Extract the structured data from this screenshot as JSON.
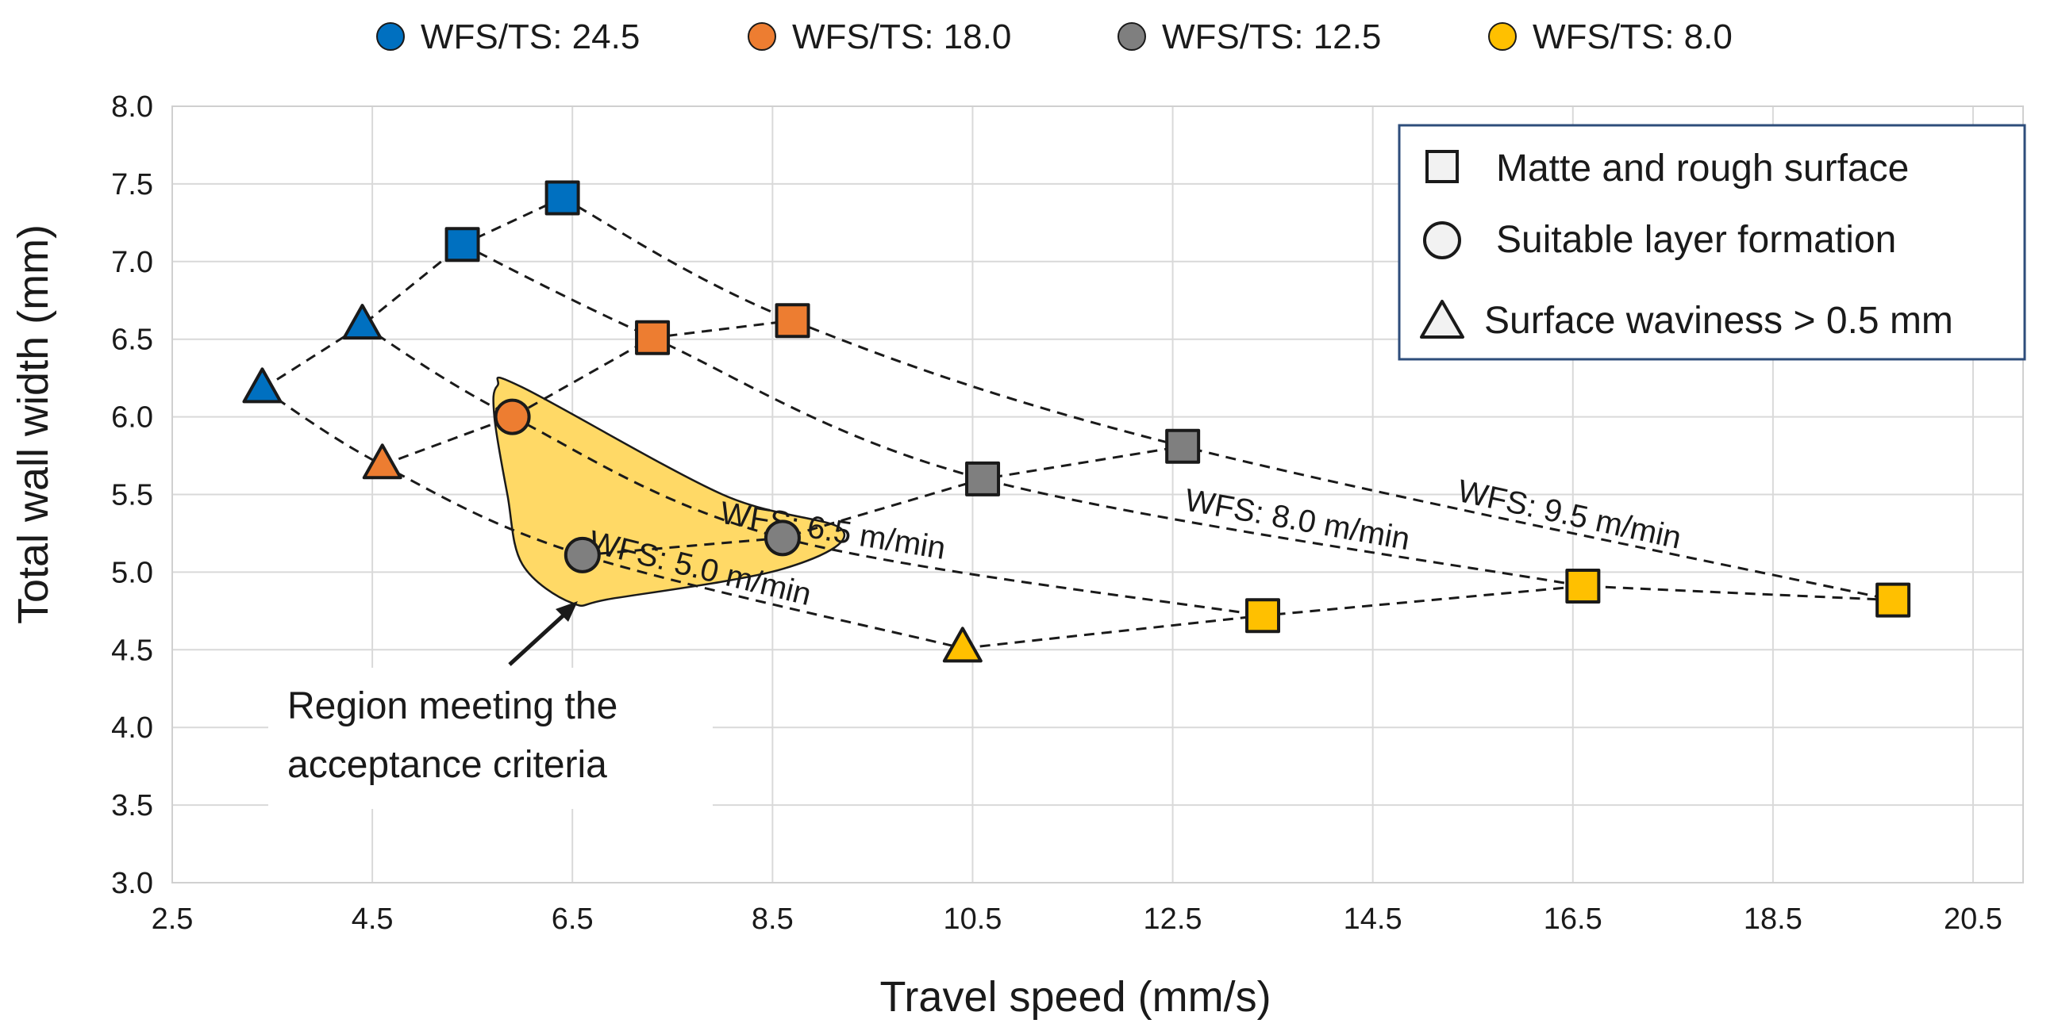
{
  "chart_data": {
    "type": "scatter",
    "xlabel": "Travel speed (mm/s)",
    "ylabel": "Total wall width (mm)",
    "xlim": [
      2.5,
      21.0
    ],
    "ylim": [
      3.0,
      8.0
    ],
    "xticks": [
      2.5,
      4.5,
      6.5,
      8.5,
      10.5,
      12.5,
      14.5,
      16.5,
      18.5,
      20.5
    ],
    "xtick_labels": [
      "2.5",
      "4.5",
      "6.5",
      "8.5",
      "10.5",
      "12.5",
      "14.5",
      "16.5",
      "18.5",
      "20.5"
    ],
    "yticks": [
      3.0,
      3.5,
      4.0,
      4.5,
      5.0,
      5.5,
      6.0,
      6.5,
      7.0,
      7.5,
      8.0
    ],
    "ytick_labels": [
      "3.0",
      "3.5",
      "4.0",
      "4.5",
      "5.0",
      "5.5",
      "6.0",
      "6.5",
      "7.0",
      "7.5",
      "8.0"
    ],
    "grid": true,
    "series": [
      {
        "name": "WFS/TS: 24.5",
        "color": "#0070C0",
        "points": [
          {
            "x": 3.4,
            "y": 6.18,
            "shape": "triangle"
          },
          {
            "x": 4.4,
            "y": 6.59,
            "shape": "triangle"
          },
          {
            "x": 5.4,
            "y": 7.11,
            "shape": "square"
          },
          {
            "x": 6.4,
            "y": 7.41,
            "shape": "square"
          }
        ]
      },
      {
        "name": "WFS/TS: 18.0",
        "color": "#ED7D31",
        "points": [
          {
            "x": 4.6,
            "y": 5.69,
            "shape": "triangle"
          },
          {
            "x": 5.9,
            "y": 6.0,
            "shape": "circle"
          },
          {
            "x": 7.3,
            "y": 6.51,
            "shape": "square"
          },
          {
            "x": 8.7,
            "y": 6.62,
            "shape": "square"
          }
        ]
      },
      {
        "name": "WFS/TS: 12.5",
        "color": "#7F7F7F",
        "points": [
          {
            "x": 6.6,
            "y": 5.11,
            "shape": "circle"
          },
          {
            "x": 8.6,
            "y": 5.22,
            "shape": "circle"
          },
          {
            "x": 10.6,
            "y": 5.6,
            "shape": "square"
          },
          {
            "x": 12.6,
            "y": 5.81,
            "shape": "square"
          }
        ]
      },
      {
        "name": "WFS/TS: 8.0",
        "color": "#FFC000",
        "points": [
          {
            "x": 10.4,
            "y": 4.51,
            "shape": "triangle"
          },
          {
            "x": 13.4,
            "y": 4.72,
            "shape": "square"
          },
          {
            "x": 16.6,
            "y": 4.91,
            "shape": "square"
          },
          {
            "x": 19.7,
            "y": 4.82,
            "shape": "square"
          }
        ]
      }
    ],
    "wfs_curves": [
      {
        "label": "WFS: 5.0 m/min",
        "points": [
          [
            3.4,
            6.18
          ],
          [
            4.6,
            5.69
          ],
          [
            6.6,
            5.11
          ],
          [
            10.4,
            4.51
          ]
        ]
      },
      {
        "label": "WFS: 6.5 m/min",
        "points": [
          [
            4.4,
            6.59
          ],
          [
            5.9,
            6.0
          ],
          [
            8.6,
            5.22
          ],
          [
            13.4,
            4.72
          ]
        ]
      },
      {
        "label": "WFS: 8.0 m/min",
        "points": [
          [
            5.4,
            7.11
          ],
          [
            7.3,
            6.51
          ],
          [
            10.6,
            5.6
          ],
          [
            16.6,
            4.91
          ]
        ]
      },
      {
        "label": "WFS: 9.5 m/min",
        "points": [
          [
            6.4,
            7.41
          ],
          [
            8.7,
            6.62
          ],
          [
            12.6,
            5.81
          ],
          [
            19.7,
            4.82
          ]
        ]
      }
    ],
    "shape_legend": [
      {
        "shape": "square",
        "label": "Matte and rough surface"
      },
      {
        "shape": "circle",
        "label": "Suitable layer formation"
      },
      {
        "shape": "triangle",
        "label": "Surface waviness > 0.5 mm"
      }
    ],
    "annotation": {
      "line1": "Region meeting the",
      "line2": "acceptance criteria",
      "region_color": "#FFD966",
      "region_outline": [
        [
          5.75,
          6.2
        ],
        [
          6.0,
          6.19
        ],
        [
          8.0,
          5.5
        ],
        [
          9.2,
          5.27
        ],
        [
          8.6,
          5.02
        ],
        [
          6.9,
          4.83
        ],
        [
          6.5,
          4.8
        ],
        [
          6.0,
          5.05
        ],
        [
          5.85,
          5.5
        ],
        [
          5.72,
          6.0
        ]
      ]
    }
  }
}
